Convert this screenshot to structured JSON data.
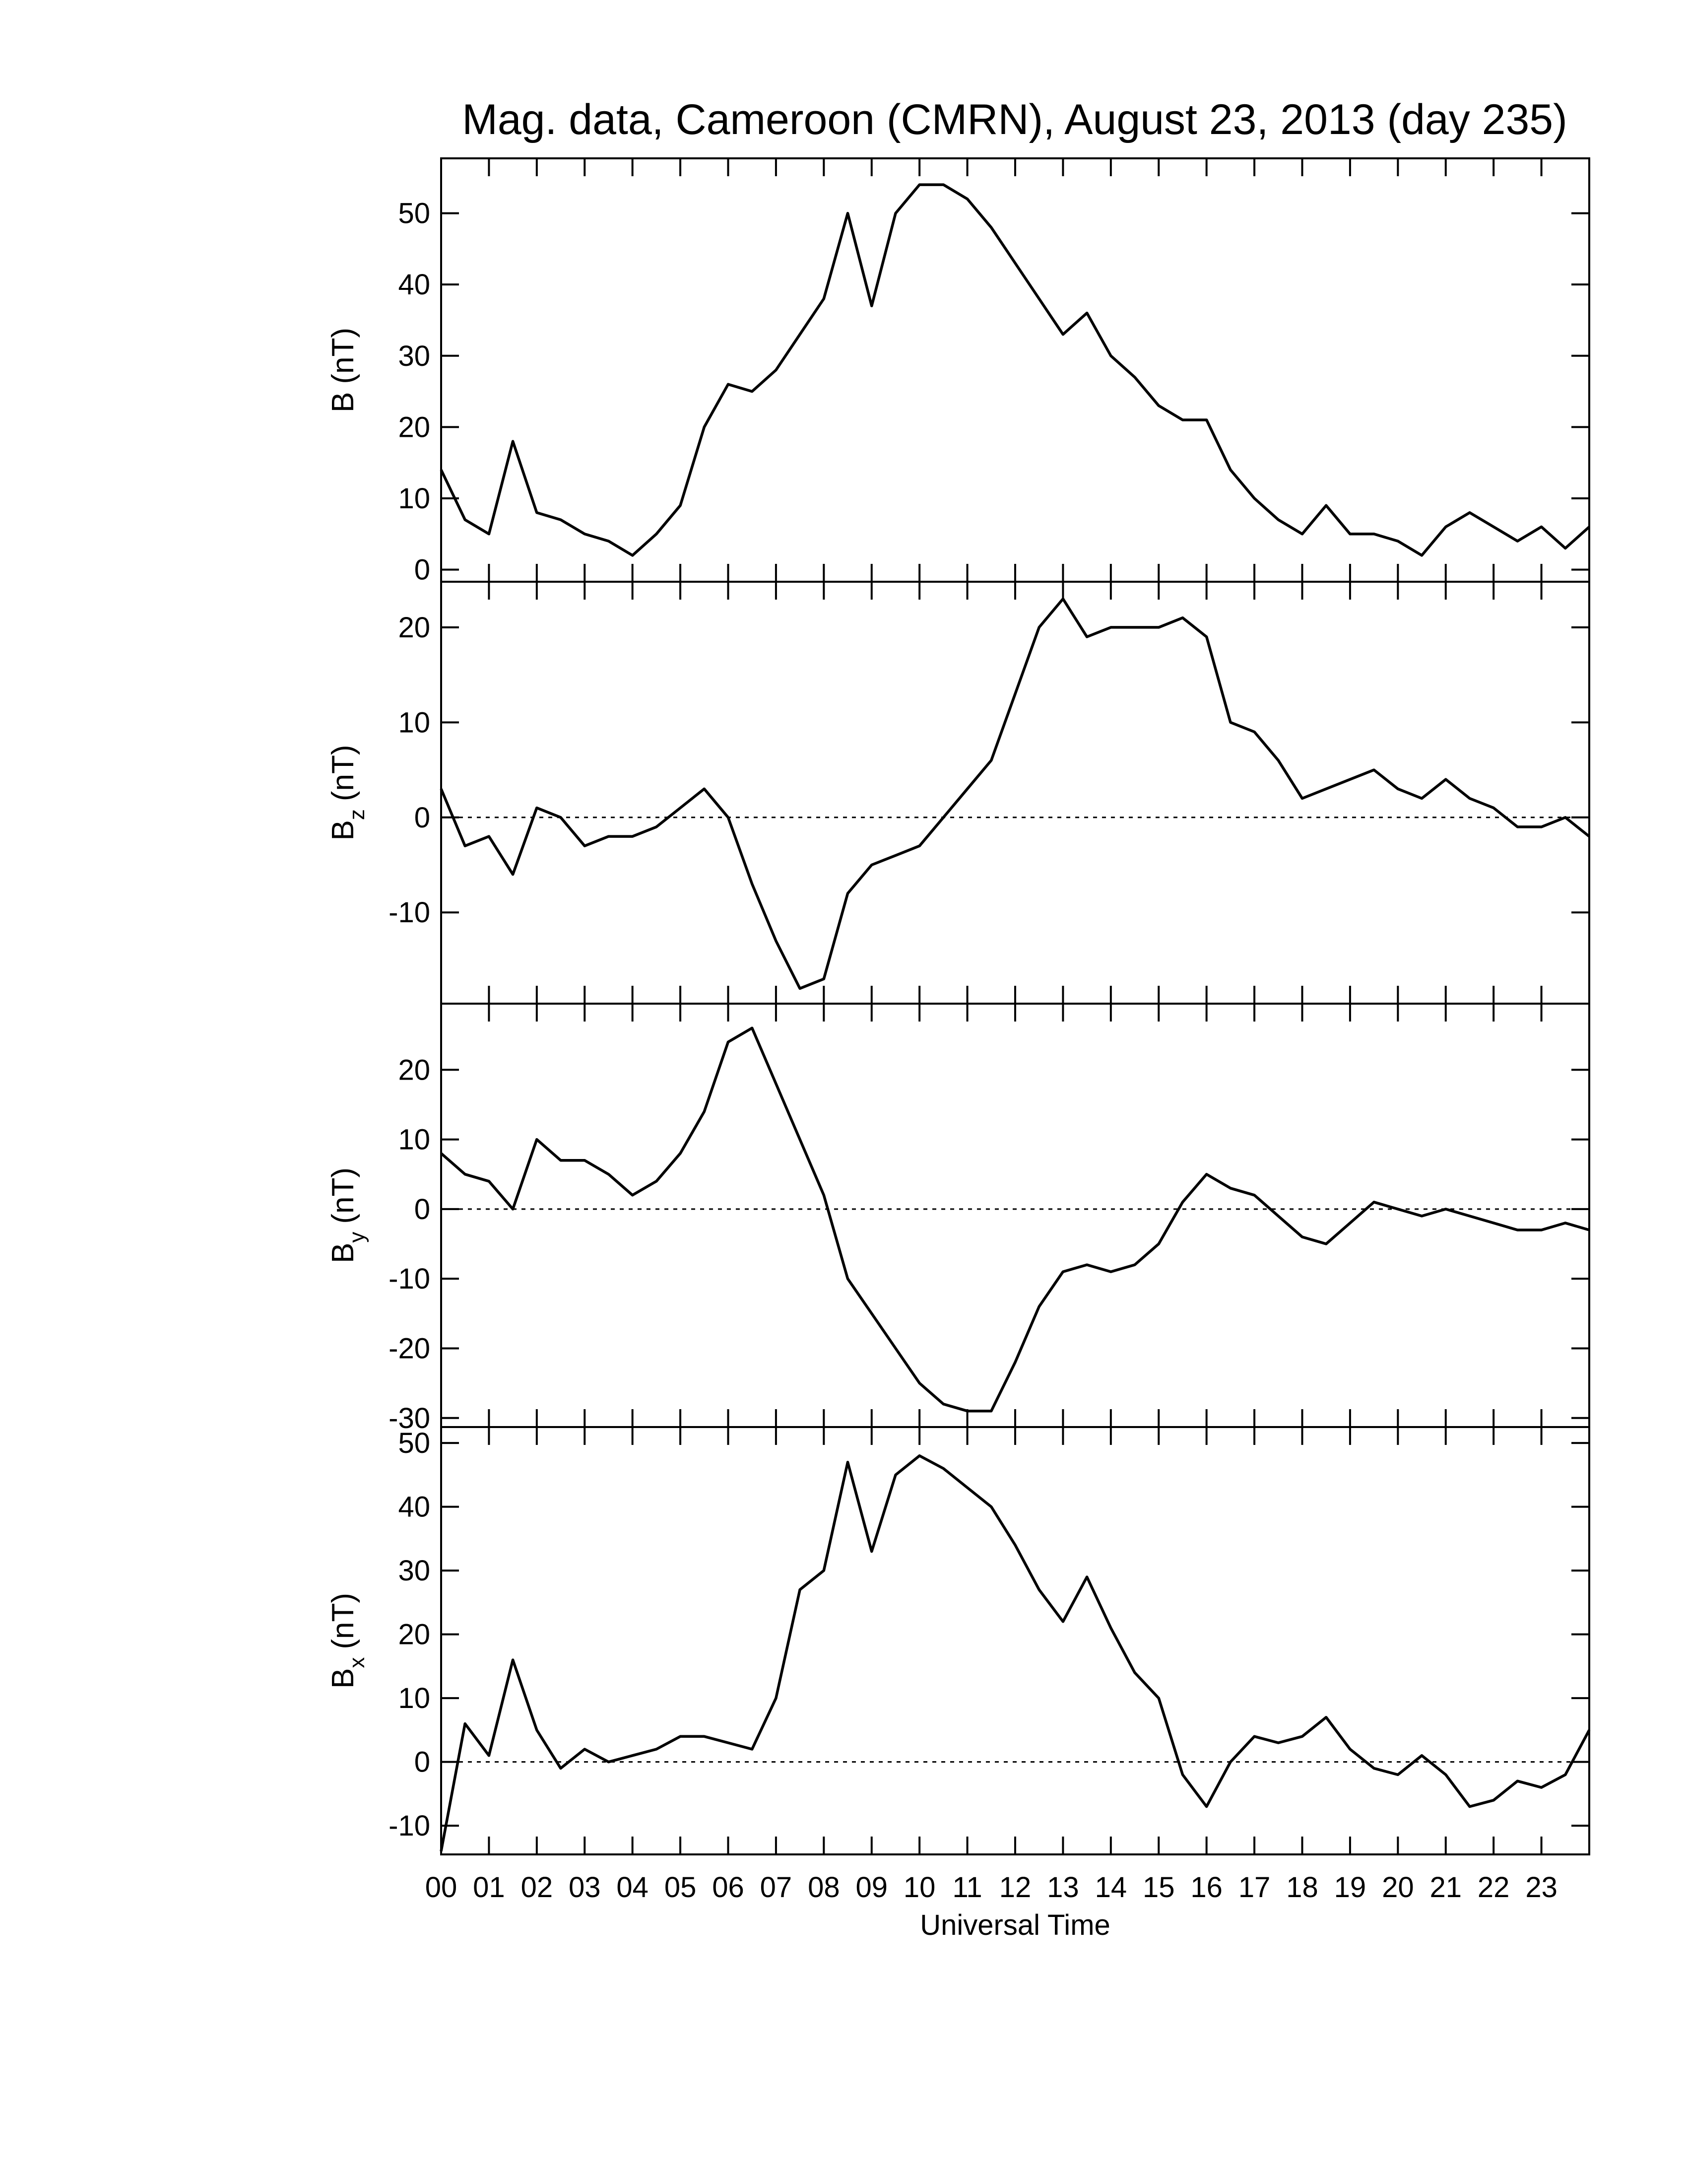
{
  "chart_data": [
    {
      "type": "line",
      "title": "Mag. data, Cameroon (CMRN), August 23, 2013 (day 235)",
      "ylabel": {
        "base": "B",
        "unit": "(nT)"
      },
      "x": [
        0,
        0.5,
        1,
        1.5,
        2,
        2.5,
        3,
        3.5,
        4,
        4.5,
        5,
        5.5,
        6,
        6.5,
        7,
        7.5,
        8,
        8.5,
        9,
        9.5,
        10,
        10.5,
        11,
        11.5,
        12,
        12.5,
        13,
        13.5,
        14,
        14.5,
        15,
        15.5,
        16,
        16.5,
        17,
        17.5,
        18,
        18.5,
        19,
        19.5,
        20,
        20.5,
        21,
        21.5,
        22,
        22.5,
        23,
        23.5,
        24
      ],
      "values": [
        14,
        7,
        5,
        18,
        8,
        7,
        5,
        4,
        2,
        5,
        9,
        20,
        26,
        25,
        28,
        33,
        38,
        50,
        37,
        50,
        54,
        54,
        52,
        48,
        43,
        38,
        33,
        36,
        30,
        27,
        23,
        21,
        21,
        14,
        10,
        7,
        5,
        9,
        5,
        5,
        4,
        2,
        6,
        8,
        6,
        4,
        6,
        3,
        6
      ],
      "color": "#000000",
      "xlim": [
        0,
        24
      ],
      "ylim": [
        -1.7,
        57.7
      ],
      "yticks": [
        0,
        10,
        20,
        30,
        40,
        50
      ],
      "xticks": [
        0,
        1,
        2,
        3,
        4,
        5,
        6,
        7,
        8,
        9,
        10,
        11,
        12,
        13,
        14,
        15,
        16,
        17,
        18,
        19,
        20,
        21,
        22,
        23
      ],
      "zero_line": false
    },
    {
      "type": "line",
      "ylabel": {
        "base": "B",
        "sub": "z",
        "unit": "(nT)"
      },
      "x": [
        0,
        0.5,
        1,
        1.5,
        2,
        2.5,
        3,
        3.5,
        4,
        4.5,
        5,
        5.5,
        6,
        6.5,
        7,
        7.5,
        8,
        8.5,
        9,
        9.5,
        10,
        10.5,
        11,
        11.5,
        12,
        12.5,
        13,
        13.5,
        14,
        14.5,
        15,
        15.5,
        16,
        16.5,
        17,
        17.5,
        18,
        18.5,
        19,
        19.5,
        20,
        20.5,
        21,
        21.5,
        22,
        22.5,
        23,
        23.5,
        24
      ],
      "values": [
        3,
        -3,
        -2,
        -6,
        1,
        0,
        -3,
        -2,
        -2,
        -1,
        1,
        3,
        0,
        -7,
        -13,
        -18,
        -17,
        -8,
        -5,
        -4,
        -3,
        0,
        3,
        6,
        13,
        20,
        23,
        19,
        20,
        20,
        20,
        21,
        19,
        10,
        9,
        6,
        2,
        3,
        4,
        5,
        3,
        2,
        4,
        2,
        1,
        -1,
        -1,
        0,
        -2
      ],
      "color": "#000000",
      "xlim": [
        0,
        24
      ],
      "ylim": [
        -19.6,
        24.8
      ],
      "yticks": [
        -10,
        0,
        10,
        20
      ],
      "xticks": [
        0,
        1,
        2,
        3,
        4,
        5,
        6,
        7,
        8,
        9,
        10,
        11,
        12,
        13,
        14,
        15,
        16,
        17,
        18,
        19,
        20,
        21,
        22,
        23
      ],
      "zero_line": true
    },
    {
      "type": "line",
      "ylabel": {
        "base": "B",
        "sub": "y",
        "unit": "(nT)"
      },
      "x": [
        0,
        0.5,
        1,
        1.5,
        2,
        2.5,
        3,
        3.5,
        4,
        4.5,
        5,
        5.5,
        6,
        6.5,
        7,
        7.5,
        8,
        8.5,
        9,
        9.5,
        10,
        10.5,
        11,
        11.5,
        12,
        12.5,
        13,
        13.5,
        14,
        14.5,
        15,
        15.5,
        16,
        16.5,
        17,
        17.5,
        18,
        18.5,
        19,
        19.5,
        20,
        20.5,
        21,
        21.5,
        22,
        22.5,
        23,
        23.5,
        24
      ],
      "values": [
        8,
        5,
        4,
        0,
        10,
        7,
        7,
        5,
        2,
        4,
        8,
        14,
        24,
        26,
        18,
        10,
        2,
        -10,
        -15,
        -20,
        -25,
        -28,
        -29,
        -29,
        -22,
        -14,
        -9,
        -8,
        -9,
        -8,
        -5,
        1,
        5,
        3,
        2,
        -1,
        -4,
        -5,
        -2,
        1,
        0,
        -1,
        0,
        -1,
        -2,
        -3,
        -3,
        -2,
        -3
      ],
      "color": "#000000",
      "xlim": [
        0,
        24
      ],
      "ylim": [
        -31.3,
        29.5
      ],
      "yticks": [
        -30,
        -20,
        -10,
        0,
        10,
        20
      ],
      "xticks": [
        0,
        1,
        2,
        3,
        4,
        5,
        6,
        7,
        8,
        9,
        10,
        11,
        12,
        13,
        14,
        15,
        16,
        17,
        18,
        19,
        20,
        21,
        22,
        23
      ],
      "zero_line": true
    },
    {
      "type": "line",
      "ylabel": {
        "base": "B",
        "sub": "x",
        "unit": "(nT)"
      },
      "xlabel": "Universal Time",
      "x": [
        0,
        0.5,
        1,
        1.5,
        2,
        2.5,
        3,
        3.5,
        4,
        4.5,
        5,
        5.5,
        6,
        6.5,
        7,
        7.5,
        8,
        8.5,
        9,
        9.5,
        10,
        10.5,
        11,
        11.5,
        12,
        12.5,
        13,
        13.5,
        14,
        14.5,
        15,
        15.5,
        16,
        16.5,
        17,
        17.5,
        18,
        18.5,
        19,
        19.5,
        20,
        20.5,
        21,
        21.5,
        22,
        22.5,
        23,
        23.5,
        24
      ],
      "values": [
        -14,
        6,
        1,
        16,
        5,
        -1,
        2,
        0,
        1,
        2,
        4,
        4,
        3,
        2,
        10,
        27,
        30,
        47,
        33,
        45,
        48,
        46,
        43,
        40,
        34,
        27,
        22,
        29,
        21,
        14,
        10,
        -2,
        -7,
        0,
        4,
        3,
        4,
        7,
        2,
        -1,
        -2,
        1,
        -2,
        -7,
        -6,
        -3,
        -4,
        -2,
        5
      ],
      "color": "#000000",
      "xlim": [
        0,
        24
      ],
      "ylim": [
        -14.5,
        52.5
      ],
      "yticks": [
        -10,
        0,
        10,
        20,
        30,
        40,
        50
      ],
      "xticks": [
        {
          "value": 0,
          "label": "00"
        },
        {
          "value": 1,
          "label": "01"
        },
        {
          "value": 2,
          "label": "02"
        },
        {
          "value": 3,
          "label": "03"
        },
        {
          "value": 4,
          "label": "04"
        },
        {
          "value": 5,
          "label": "05"
        },
        {
          "value": 6,
          "label": "06"
        },
        {
          "value": 7,
          "label": "07"
        },
        {
          "value": 8,
          "label": "08"
        },
        {
          "value": 9,
          "label": "09"
        },
        {
          "value": 10,
          "label": "10"
        },
        {
          "value": 11,
          "label": "11"
        },
        {
          "value": 12,
          "label": "12"
        },
        {
          "value": 13,
          "label": "13"
        },
        {
          "value": 14,
          "label": "14"
        },
        {
          "value": 15,
          "label": "15"
        },
        {
          "value": 16,
          "label": "16"
        },
        {
          "value": 17,
          "label": "17"
        },
        {
          "value": 18,
          "label": "18"
        },
        {
          "value": 19,
          "label": "19"
        },
        {
          "value": 20,
          "label": "20"
        },
        {
          "value": 21,
          "label": "21"
        },
        {
          "value": 22,
          "label": "22"
        },
        {
          "value": 23,
          "label": "23"
        }
      ],
      "zero_line": true
    }
  ]
}
